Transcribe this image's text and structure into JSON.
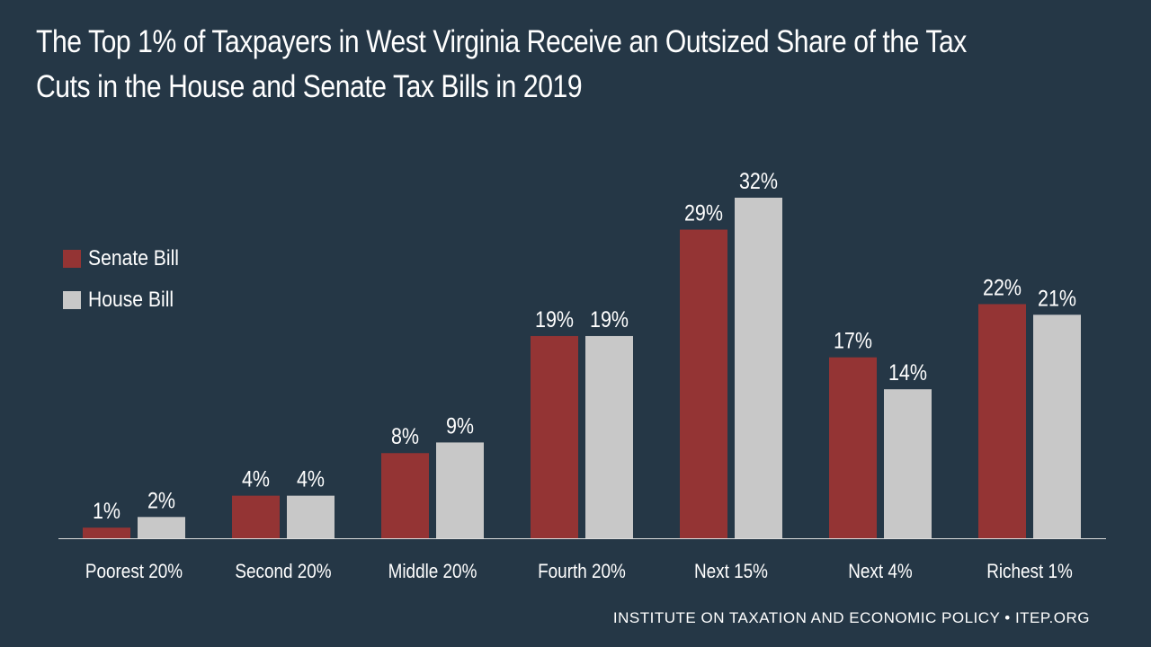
{
  "title_lines": [
    "The Top 1% of Taxpayers in West Virginia Receive an Outsized Share of the Tax",
    "Cuts in the House and Senate Tax Bills in 2019"
  ],
  "footer": "INSTITUTE ON TAXATION AND ECONOMIC POLICY • ITEP.ORG",
  "colors": {
    "background": "#253746",
    "senate": "#943434",
    "house": "#c8c8c8",
    "text": "#ffffff",
    "axis": "#dddddd"
  },
  "chart_data": {
    "type": "bar",
    "title": "The Top 1% of Taxpayers in West Virginia Receive an Outsized Share of the Tax Cuts in the House and Senate Tax Bills in 2019",
    "categories": [
      "Poorest 20%",
      "Second 20%",
      "Middle 20%",
      "Fourth 20%",
      "Next 15%",
      "Next 4%",
      "Richest 1%"
    ],
    "series": [
      {
        "name": "Senate Bill",
        "color": "#943434",
        "values": [
          1,
          4,
          8,
          19,
          29,
          17,
          22
        ],
        "labels": [
          "1%",
          "4%",
          "8%",
          "19%",
          "29%",
          "17%",
          "22%"
        ]
      },
      {
        "name": "House Bill",
        "color": "#c8c8c8",
        "values": [
          2,
          4,
          9,
          19,
          32,
          14,
          21
        ],
        "labels": [
          "2%",
          "4%",
          "9%",
          "19%",
          "32%",
          "14%",
          "21%"
        ]
      }
    ],
    "unit": "%",
    "xlabel": "",
    "ylabel": "",
    "ylim": [
      0,
      32
    ],
    "grid": false,
    "legend_position": "left"
  }
}
